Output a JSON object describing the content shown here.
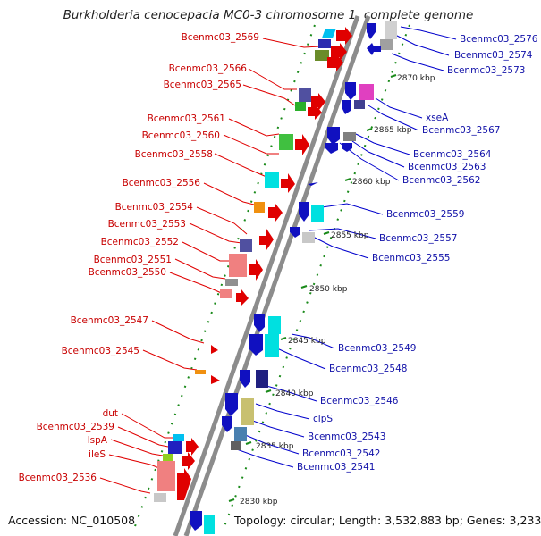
{
  "title": "Burkholderia cenocepacia MC0-3 chromosome 1, complete genome",
  "footer": {
    "accession": "Accession: NC_010508",
    "topology": "Topology: circular; Length: 3,532,883 bp; Genes: 3,233"
  },
  "colors": {
    "left_label": "#c80000",
    "right_label": "#1010a8",
    "backbone": "#8c8c8c",
    "ruler": "#1a8a1a"
  },
  "kbp_ticks": [
    "2870 kbp",
    "2865 kbp",
    "2860 kbp",
    "2855 kbp",
    "2850 kbp",
    "2845 kbp",
    "2840 kbp",
    "2835 kbp",
    "2830 kbp"
  ],
  "left_labels": [
    "Bcenmc03_2569",
    "Bcenmc03_2566",
    "Bcenmc03_2565",
    "Bcenmc03_2561",
    "Bcenmc03_2560",
    "Bcenmc03_2558",
    "Bcenmc03_2556",
    "Bcenmc03_2554",
    "Bcenmc03_2553",
    "Bcenmc03_2552",
    "Bcenmc03_2551",
    "Bcenmc03_2550",
    "Bcenmc03_2547",
    "Bcenmc03_2545",
    "dut",
    "Bcenmc03_2539",
    "lspA",
    "ileS",
    "Bcenmc03_2536"
  ],
  "right_labels": [
    "Bcenmc03_2576",
    "Bcenmc03_2574",
    "Bcenmc03_2573",
    "xseA",
    "Bcenmc03_2567",
    "Bcenmc03_2564",
    "Bcenmc03_2563",
    "Bcenmc03_2562",
    "Bcenmc03_2559",
    "Bcenmc03_2557",
    "Bcenmc03_2555",
    "Bcenmc03_2549",
    "Bcenmc03_2548",
    "Bcenmc03_2546",
    "clpS",
    "Bcenmc03_2543",
    "Bcenmc03_2542",
    "Bcenmc03_2541"
  ]
}
